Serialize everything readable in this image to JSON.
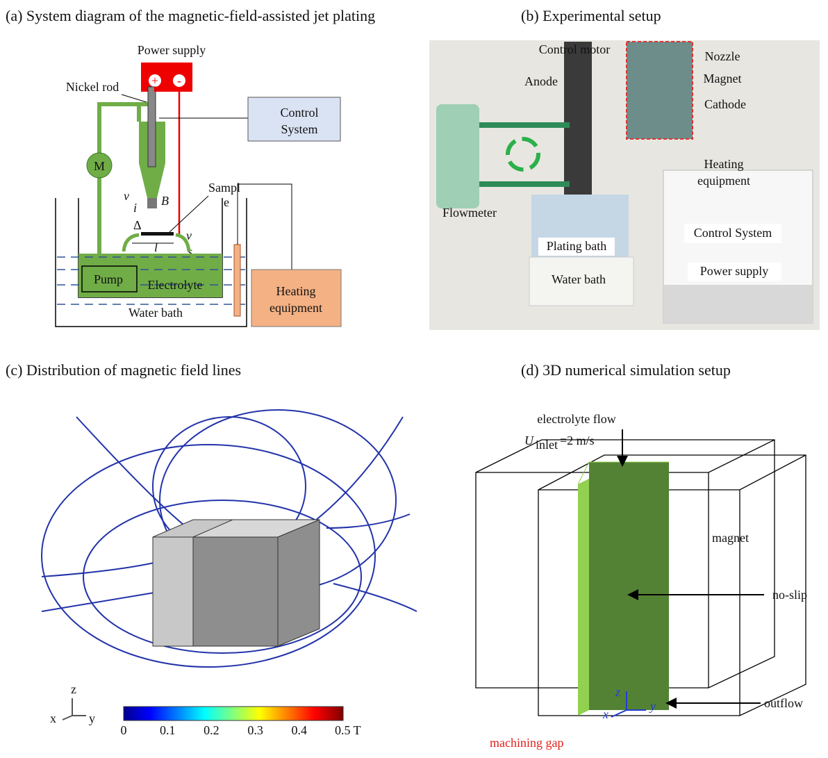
{
  "panel_a": {
    "title": "(a)  System diagram of the magnetic-field-assisted jet plating",
    "power_supply": "Power supply",
    "plus": "+",
    "minus": "-",
    "nickel_rod": "Nickel rod",
    "control_system": [
      "Control",
      "System"
    ],
    "motor": "M",
    "sample": [
      "Sampl",
      "e"
    ],
    "symbols": {
      "v": "v",
      "B": "B",
      "i": "i",
      "delta": "Δ",
      "l": "l",
      "vs": "v",
      "s": "s"
    },
    "pump": "Pump",
    "electrolyte": "Electrolyte",
    "water_bath": "Water bath",
    "heating_equipment": [
      "Heating",
      "equipment"
    ]
  },
  "panel_b": {
    "title": "(b)   Experimental setup",
    "labels": {
      "control_motor": "Control motor",
      "anode": "Anode",
      "nozzle": "Nozzle",
      "magnet": "Magnet",
      "cathode": "Cathode",
      "heating_equipment": [
        "Heating",
        "equipment"
      ],
      "flowmeter": "Flowmeter",
      "plating_bath": "Plating bath",
      "control_system": "Control System",
      "water_bath": "Water bath",
      "power_supply": "Power supply"
    }
  },
  "panel_c": {
    "title": "(c) Distribution of magnetic field lines",
    "axes": {
      "z": "z",
      "x": "x",
      "y": "y"
    },
    "colorbar_ticks": [
      "0",
      "0.1",
      "0.2",
      "0.3",
      "0.4",
      "0.5 T"
    ]
  },
  "panel_d": {
    "title": "(d) 3D numerical simulation setup",
    "electrolyte_flow": "electrolyte flow",
    "u": "U",
    "inlet": "inlet",
    "inlet_value": "=2 m/s",
    "magnet": "magnet",
    "no_slip": "no-slip",
    "outflow": "outflow",
    "axes": {
      "z": "z",
      "x": "x",
      "y": "y"
    },
    "machining_gap": "machining gap"
  }
}
